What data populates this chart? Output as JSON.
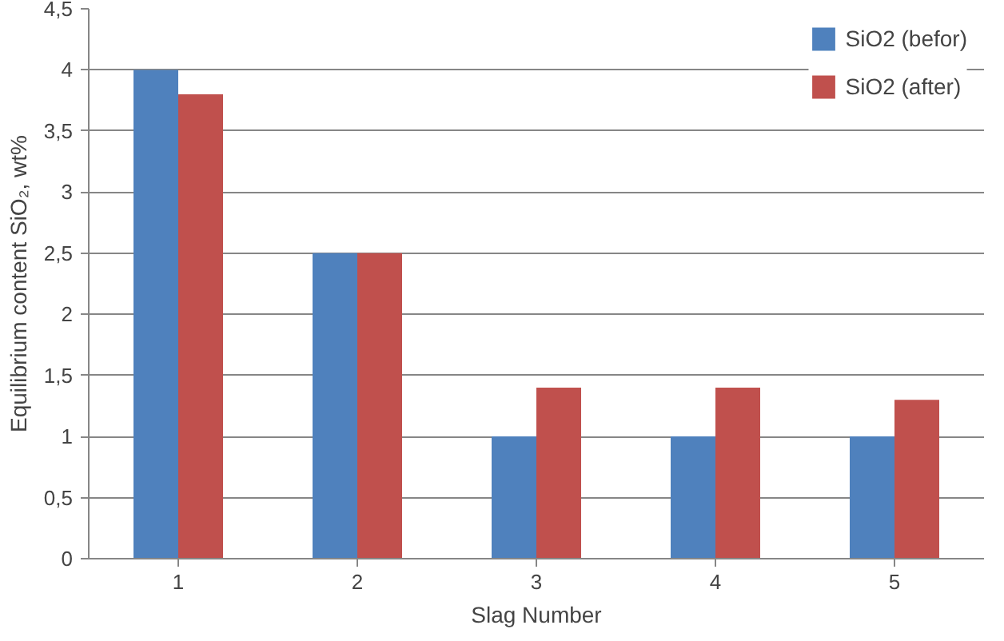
{
  "chart_data": {
    "type": "bar",
    "xlabel": "Slag Number",
    "ylabel": "Equilibrium content SiO₂, wt%",
    "categories": [
      "1",
      "2",
      "3",
      "4",
      "5"
    ],
    "series": [
      {
        "name": "SiO2 (befor)",
        "color": "#4f81bd",
        "values": [
          4.0,
          2.5,
          1.0,
          1.0,
          1.0
        ]
      },
      {
        "name": "SiO2 (after)",
        "color": "#c0504d",
        "values": [
          3.8,
          2.5,
          1.4,
          1.4,
          1.3
        ]
      }
    ],
    "ylim": [
      0,
      4.5
    ],
    "yticks": [
      0,
      {
        "value": 0.5,
        "label": "0,5"
      },
      1,
      {
        "value": 1.5,
        "label": "1,5"
      },
      2,
      {
        "value": 2.5,
        "label": "2,5"
      },
      3,
      {
        "value": 3.5,
        "label": "3,5"
      },
      4,
      {
        "value": 4.5,
        "label": "4,5"
      }
    ],
    "grid": "y",
    "legend": "top right"
  }
}
